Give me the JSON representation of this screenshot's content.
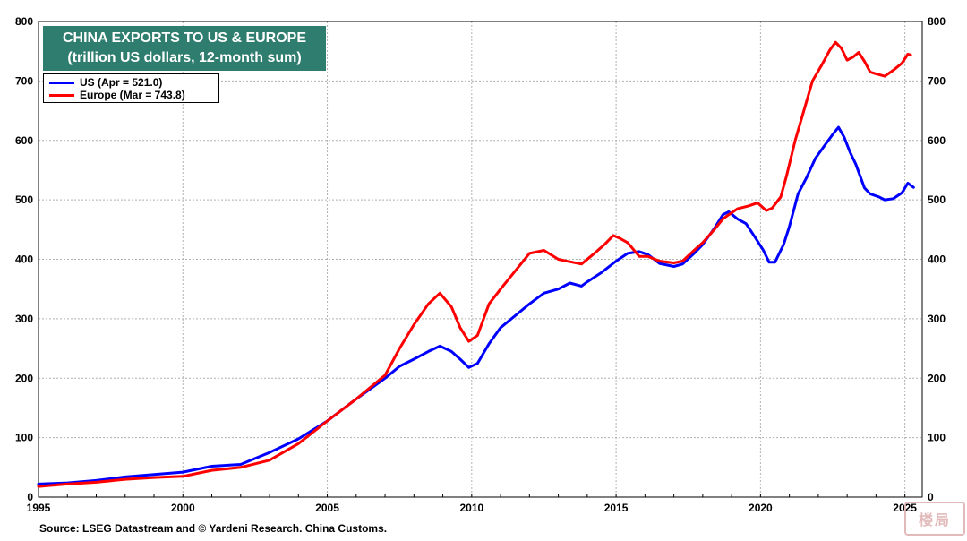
{
  "chart_data": {
    "type": "line",
    "title": "CHINA EXPORTS TO US & EUROPE",
    "subtitle": "(trillion US dollars, 12-month sum)",
    "xlabel": "",
    "ylabel": "",
    "xlim": [
      1995,
      2025.6
    ],
    "ylim": [
      0,
      800
    ],
    "y_ticks": [
      0,
      100,
      200,
      300,
      400,
      500,
      600,
      700,
      800
    ],
    "x_ticks": [
      1995,
      2000,
      2005,
      2010,
      2015,
      2020,
      2025
    ],
    "grid": true,
    "legend_position": "top-left",
    "series": [
      {
        "name": "US (Apr = 521.0)",
        "color": "#0000ff",
        "points": [
          [
            1995,
            22
          ],
          [
            1996,
            24
          ],
          [
            1997,
            28
          ],
          [
            1998,
            34
          ],
          [
            1999,
            38
          ],
          [
            2000,
            42
          ],
          [
            2001,
            52
          ],
          [
            2002,
            55
          ],
          [
            2003,
            75
          ],
          [
            2004,
            98
          ],
          [
            2005,
            128
          ],
          [
            2006,
            165
          ],
          [
            2007,
            200
          ],
          [
            2007.5,
            220
          ],
          [
            2008,
            232
          ],
          [
            2008.5,
            245
          ],
          [
            2008.9,
            254
          ],
          [
            2009.3,
            245
          ],
          [
            2009.6,
            232
          ],
          [
            2009.9,
            218
          ],
          [
            2010.2,
            225
          ],
          [
            2010.6,
            258
          ],
          [
            2011,
            285
          ],
          [
            2011.5,
            305
          ],
          [
            2012,
            325
          ],
          [
            2012.5,
            343
          ],
          [
            2013,
            350
          ],
          [
            2013.4,
            360
          ],
          [
            2013.8,
            355
          ],
          [
            2014,
            362
          ],
          [
            2014.5,
            378
          ],
          [
            2015,
            397
          ],
          [
            2015.4,
            410
          ],
          [
            2015.8,
            413
          ],
          [
            2016.1,
            408
          ],
          [
            2016.5,
            393
          ],
          [
            2017,
            388
          ],
          [
            2017.3,
            392
          ],
          [
            2017.7,
            410
          ],
          [
            2018,
            425
          ],
          [
            2018.4,
            452
          ],
          [
            2018.7,
            475
          ],
          [
            2018.9,
            480
          ],
          [
            2019.2,
            468
          ],
          [
            2019.5,
            460
          ],
          [
            2019.8,
            438
          ],
          [
            2020.1,
            415
          ],
          [
            2020.3,
            395
          ],
          [
            2020.5,
            395
          ],
          [
            2020.8,
            425
          ],
          [
            2021,
            455
          ],
          [
            2021.3,
            510
          ],
          [
            2021.6,
            538
          ],
          [
            2021.9,
            570
          ],
          [
            2022.2,
            590
          ],
          [
            2022.5,
            610
          ],
          [
            2022.7,
            622
          ],
          [
            2022.9,
            605
          ],
          [
            2023.1,
            580
          ],
          [
            2023.3,
            560
          ],
          [
            2023.6,
            520
          ],
          [
            2023.8,
            510
          ],
          [
            2024.1,
            505
          ],
          [
            2024.3,
            500
          ],
          [
            2024.6,
            502
          ],
          [
            2024.9,
            512
          ],
          [
            2025.1,
            528
          ],
          [
            2025.3,
            521
          ]
        ]
      },
      {
        "name": "Europe  (Mar = 743.8)",
        "color": "#ff0000",
        "points": [
          [
            1995,
            18
          ],
          [
            1996,
            22
          ],
          [
            1997,
            25
          ],
          [
            1998,
            30
          ],
          [
            1999,
            33
          ],
          [
            2000,
            35
          ],
          [
            2001,
            45
          ],
          [
            2002,
            50
          ],
          [
            2003,
            62
          ],
          [
            2004,
            90
          ],
          [
            2005,
            128
          ],
          [
            2006,
            165
          ],
          [
            2007,
            205
          ],
          [
            2007.5,
            250
          ],
          [
            2008,
            290
          ],
          [
            2008.5,
            325
          ],
          [
            2008.9,
            343
          ],
          [
            2009.3,
            320
          ],
          [
            2009.6,
            285
          ],
          [
            2009.9,
            262
          ],
          [
            2010.2,
            272
          ],
          [
            2010.6,
            325
          ],
          [
            2011,
            350
          ],
          [
            2011.5,
            380
          ],
          [
            2012,
            410
          ],
          [
            2012.5,
            415
          ],
          [
            2013,
            400
          ],
          [
            2013.4,
            396
          ],
          [
            2013.8,
            392
          ],
          [
            2014.2,
            408
          ],
          [
            2014.6,
            425
          ],
          [
            2014.9,
            440
          ],
          [
            2015.1,
            436
          ],
          [
            2015.4,
            428
          ],
          [
            2015.8,
            405
          ],
          [
            2016.1,
            405
          ],
          [
            2016.5,
            397
          ],
          [
            2017,
            394
          ],
          [
            2017.3,
            397
          ],
          [
            2017.7,
            415
          ],
          [
            2018,
            428
          ],
          [
            2018.4,
            450
          ],
          [
            2018.7,
            468
          ],
          [
            2018.9,
            475
          ],
          [
            2019.2,
            485
          ],
          [
            2019.6,
            490
          ],
          [
            2019.9,
            495
          ],
          [
            2020.2,
            482
          ],
          [
            2020.4,
            486
          ],
          [
            2020.7,
            505
          ],
          [
            2020.9,
            540
          ],
          [
            2021.2,
            600
          ],
          [
            2021.5,
            650
          ],
          [
            2021.8,
            700
          ],
          [
            2022.1,
            725
          ],
          [
            2022.4,
            752
          ],
          [
            2022.6,
            765
          ],
          [
            2022.8,
            755
          ],
          [
            2023,
            735
          ],
          [
            2023.2,
            740
          ],
          [
            2023.4,
            748
          ],
          [
            2023.6,
            733
          ],
          [
            2023.8,
            715
          ],
          [
            2024,
            712
          ],
          [
            2024.3,
            708
          ],
          [
            2024.6,
            718
          ],
          [
            2024.9,
            730
          ],
          [
            2025.1,
            745
          ],
          [
            2025.2,
            743.8
          ]
        ]
      }
    ]
  },
  "source_text": "Source: LSEG Datastream and © Yardeni Research. China Customs.",
  "watermark_text": "楼局"
}
